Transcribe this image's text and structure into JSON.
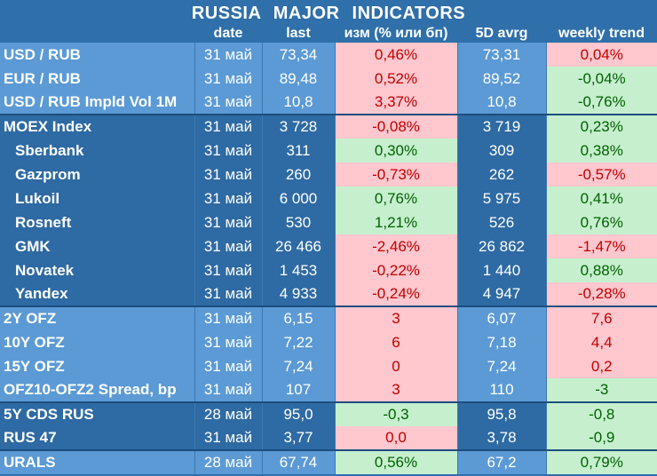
{
  "title": "RUSSIA   MAJOR   INDICATORS",
  "headers": {
    "date": "date",
    "last": "last",
    "chg": "изм (% или бп)",
    "avg": "5D avrg",
    "trend": "weekly trend"
  },
  "rows": [
    {
      "name": "USD / RUB",
      "date": "31 май",
      "last": "73,34",
      "chg": "0,46%",
      "chg_tone": "red",
      "avg": "73,31",
      "trend": "0,04%",
      "trend_tone": "red",
      "group": 1,
      "sub": false
    },
    {
      "name": "EUR / RUB",
      "date": "31 май",
      "last": "89,48",
      "chg": "0,52%",
      "chg_tone": "red",
      "avg": "89,52",
      "trend": "-0,04%",
      "trend_tone": "green",
      "group": 1,
      "sub": false
    },
    {
      "name": "USD / RUB Impld Vol 1M",
      "date": "31 май",
      "last": "10,8",
      "chg": "3,37%",
      "chg_tone": "red",
      "avg": "10,8",
      "trend": "-0,76%",
      "trend_tone": "green",
      "group": 1,
      "sub": false
    },
    {
      "name": "MOEX Index",
      "date": "31 май",
      "last": "3 728",
      "chg": "-0,08%",
      "chg_tone": "red",
      "avg": "3 719",
      "trend": "0,23%",
      "trend_tone": "green",
      "group": 2,
      "sub": false
    },
    {
      "name": "Sberbank",
      "date": "31 май",
      "last": "311",
      "chg": "0,30%",
      "chg_tone": "green",
      "avg": "309",
      "trend": "0,38%",
      "trend_tone": "green",
      "group": 2,
      "sub": true
    },
    {
      "name": "Gazprom",
      "date": "31 май",
      "last": "260",
      "chg": "-0,73%",
      "chg_tone": "red",
      "avg": "262",
      "trend": "-0,57%",
      "trend_tone": "red",
      "group": 2,
      "sub": true
    },
    {
      "name": "Lukoil",
      "date": "31 май",
      "last": "6 000",
      "chg": "0,76%",
      "chg_tone": "green",
      "avg": "5 975",
      "trend": "0,41%",
      "trend_tone": "green",
      "group": 2,
      "sub": true
    },
    {
      "name": "Rosneft",
      "date": "31 май",
      "last": "530",
      "chg": "1,21%",
      "chg_tone": "green",
      "avg": "526",
      "trend": "0,76%",
      "trend_tone": "green",
      "group": 2,
      "sub": true
    },
    {
      "name": "GMK",
      "date": "31 май",
      "last": "26 466",
      "chg": "-2,46%",
      "chg_tone": "red",
      "avg": "26 862",
      "trend": "-1,47%",
      "trend_tone": "red",
      "group": 2,
      "sub": true
    },
    {
      "name": "Novatek",
      "date": "31 май",
      "last": "1 453",
      "chg": "-0,22%",
      "chg_tone": "red",
      "avg": "1 440",
      "trend": "0,88%",
      "trend_tone": "green",
      "group": 2,
      "sub": true
    },
    {
      "name": "Yandex",
      "date": "31 май",
      "last": "4 933",
      "chg": "-0,24%",
      "chg_tone": "red",
      "avg": "4 947",
      "trend": "-0,28%",
      "trend_tone": "red",
      "group": 2,
      "sub": true
    },
    {
      "name": "2Y OFZ",
      "date": "31 май",
      "last": "6,15",
      "chg": "3",
      "chg_tone": "red",
      "avg": "6,07",
      "trend": "7,6",
      "trend_tone": "red",
      "group": 3,
      "sub": false
    },
    {
      "name": "10Y OFZ",
      "date": "31 май",
      "last": "7,22",
      "chg": "6",
      "chg_tone": "red",
      "avg": "7,18",
      "trend": "4,4",
      "trend_tone": "red",
      "group": 3,
      "sub": false
    },
    {
      "name": "15Y OFZ",
      "date": "31 май",
      "last": "7,24",
      "chg": "0",
      "chg_tone": "red",
      "avg": "7,24",
      "trend": "0,2",
      "trend_tone": "red",
      "group": 3,
      "sub": false
    },
    {
      "name": "OFZ10-OFZ2 Spread, bp",
      "date": "31 май",
      "last": "107",
      "chg": "3",
      "chg_tone": "red",
      "avg": "110",
      "trend": "-3",
      "trend_tone": "green",
      "group": 3,
      "sub": false
    },
    {
      "name": "5Y CDS RUS",
      "date": "28 май",
      "last": "95,0",
      "chg": "-0,3",
      "chg_tone": "green",
      "avg": "95,8",
      "trend": "-0,8",
      "trend_tone": "green",
      "group": 4,
      "sub": false
    },
    {
      "name": "RUS 47",
      "date": "31 май",
      "last": "3,77",
      "chg": "0,0",
      "chg_tone": "red",
      "avg": "3,78",
      "trend": "-0,9",
      "trend_tone": "green",
      "group": 4,
      "sub": false
    },
    {
      "name": "URALS",
      "date": "28 май",
      "last": "67,74",
      "chg": "0,56%",
      "chg_tone": "green",
      "avg": "67,2",
      "trend": "0,79%",
      "trend_tone": "green",
      "group": 5,
      "sub": false
    }
  ]
}
